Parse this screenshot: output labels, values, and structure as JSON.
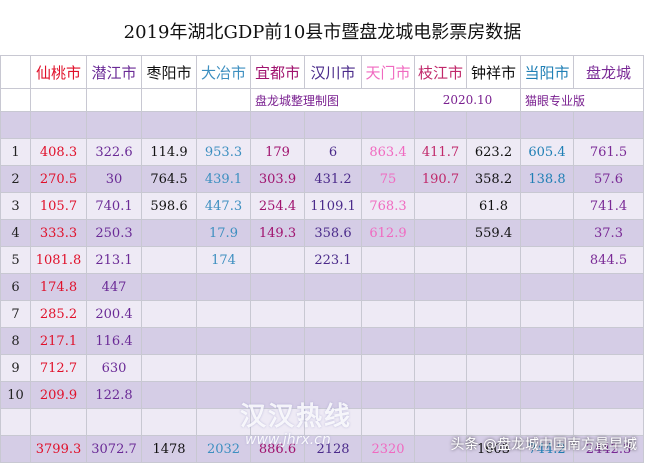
{
  "title": "2019年湖北GDP前10县市暨盘龙城电影票房数据",
  "columns": [
    {
      "label": "仙桃市",
      "color": "#e0102a"
    },
    {
      "label": "潜江市",
      "color": "#6a2a96"
    },
    {
      "label": "枣阳市",
      "color": "#111111"
    },
    {
      "label": "大冶市",
      "color": "#3d8fc0"
    },
    {
      "label": "宜都市",
      "color": "#a0126e"
    },
    {
      "label": "汉川市",
      "color": "#4a2a8a"
    },
    {
      "label": "天门市",
      "color": "#f06ac0"
    },
    {
      "label": "枝江市",
      "color": "#c0286a"
    },
    {
      "label": "钟祥市",
      "color": "#111111"
    },
    {
      "label": "当阳市",
      "color": "#1f7fb5"
    },
    {
      "label": "盘龙城",
      "color": "#7a2a96"
    }
  ],
  "notes": {
    "maker": "盘龙城整理制图",
    "date": "2020.10",
    "source": "猫眼专业版"
  },
  "rows": [
    {
      "index": "1",
      "values": [
        "408.3",
        "322.6",
        "114.9",
        "953.3",
        "179",
        "6",
        "863.4",
        "411.7",
        "623.2",
        "605.4",
        "761.5"
      ]
    },
    {
      "index": "2",
      "values": [
        "270.5",
        "30",
        "764.5",
        "439.1",
        "303.9",
        "431.2",
        "75",
        "190.7",
        "358.2",
        "138.8",
        "57.6"
      ]
    },
    {
      "index": "3",
      "values": [
        "105.7",
        "740.1",
        "598.6",
        "447.3",
        "254.4",
        "1109.1",
        "768.3",
        "",
        "61.8",
        "",
        "741.4"
      ]
    },
    {
      "index": "4",
      "values": [
        "333.3",
        "250.3",
        "",
        "17.9",
        "149.3",
        "358.6",
        "612.9",
        "",
        "559.4",
        "",
        "37.3"
      ]
    },
    {
      "index": "5",
      "values": [
        "1081.8",
        "213.1",
        "",
        "174",
        "",
        "223.1",
        "",
        "",
        "",
        "",
        "844.5"
      ]
    },
    {
      "index": "6",
      "values": [
        "174.8",
        "447",
        "",
        "",
        "",
        "",
        "",
        "",
        "",
        "",
        ""
      ]
    },
    {
      "index": "7",
      "values": [
        "285.2",
        "200.4",
        "",
        "",
        "",
        "",
        "",
        "",
        "",
        "",
        ""
      ]
    },
    {
      "index": "8",
      "values": [
        "217.1",
        "116.4",
        "",
        "",
        "",
        "",
        "",
        "",
        "",
        "",
        ""
      ]
    },
    {
      "index": "9",
      "values": [
        "712.7",
        "630",
        "",
        "",
        "",
        "",
        "",
        "",
        "",
        "",
        ""
      ]
    },
    {
      "index": "10",
      "values": [
        "209.9",
        "122.8",
        "",
        "",
        "",
        "",
        "",
        "",
        "",
        "",
        ""
      ]
    }
  ],
  "totals": [
    "3799.3",
    "3072.7",
    "1478",
    "2032",
    "886.6",
    "2128",
    "2320",
    "",
    "1603",
    "744.2",
    "2442.3"
  ],
  "watermark": {
    "text": "汉汉热线",
    "url": "www.jhrx.cn"
  },
  "credit": "头条 @盘龙城中国南方最早城"
}
